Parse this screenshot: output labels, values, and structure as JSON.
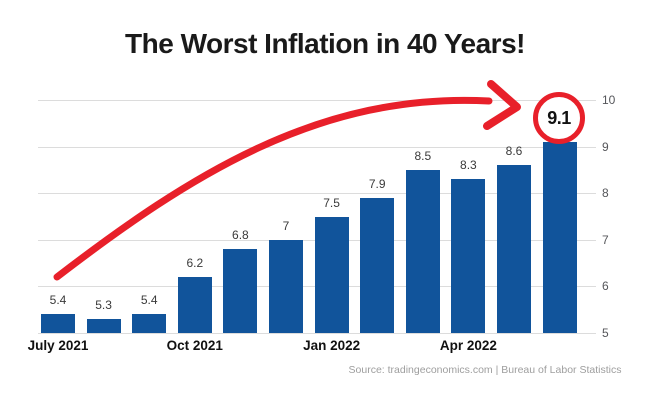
{
  "title": "The Worst Inflation in 40 Years!",
  "source": "Source: tradingeconomics.com | Bureau of Labor Statistics",
  "colors": {
    "bar": "#11549b",
    "accent_red": "#e8202a",
    "grid": "#dcdcdc",
    "title_text": "#1a1a1a",
    "axis_text": "#55565a",
    "value_label_text": "#3a3a3a",
    "source_text": "#9e9e9e"
  },
  "chart_data": {
    "type": "bar",
    "title": "The Worst Inflation in 40 Years!",
    "values": [
      5.4,
      5.3,
      5.4,
      6.2,
      6.8,
      7,
      7.5,
      7.9,
      8.5,
      8.3,
      8.6,
      9.1
    ],
    "bar_labels": [
      "5.4",
      "5.3",
      "5.4",
      "6.2",
      "6.8",
      "7",
      "7.5",
      "7.9",
      "8.5",
      "8.3",
      "8.6",
      "9.1"
    ],
    "x_tick_labels": [
      {
        "index": 0,
        "label": "July 2021"
      },
      {
        "index": 3,
        "label": "Oct 2021"
      },
      {
        "index": 6,
        "label": "Jan 2022"
      },
      {
        "index": 9,
        "label": "Apr 2022"
      }
    ],
    "y_ticks": [
      "10",
      "9",
      "8",
      "7",
      "6",
      "5"
    ],
    "ylim": [
      5,
      10
    ],
    "grid": true,
    "y_axis_position": "right",
    "highlight": {
      "index": 11,
      "label": "9.1",
      "style": "red-circle-with-arrow"
    }
  }
}
